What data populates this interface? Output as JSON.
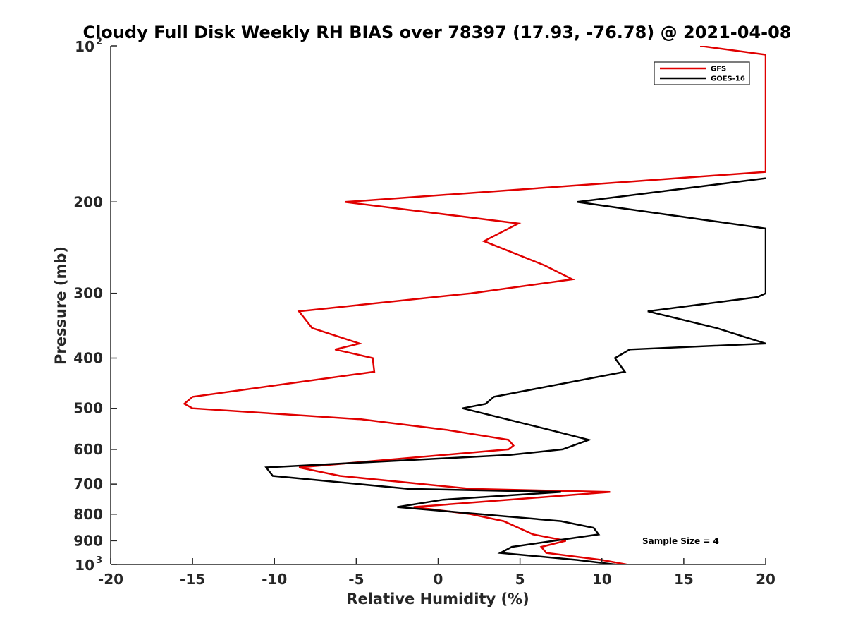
{
  "chart_data": {
    "type": "line",
    "title": "Cloudy Full Disk Weekly RH BIAS over 78397 (17.93, -76.78) @ 2021-04-08",
    "xlabel": "Relative Humidity (%)",
    "ylabel": "Pressure (mb)",
    "xlim": [
      -20,
      20
    ],
    "ylim": [
      100,
      1000
    ],
    "y_scale": "log",
    "y_reversed": true,
    "grid": false,
    "legend_placement": "top-right",
    "x_ticks": [
      {
        "value": -20,
        "label": "-20"
      },
      {
        "value": -15,
        "label": "-15"
      },
      {
        "value": -10,
        "label": "-10"
      },
      {
        "value": -5,
        "label": "-5"
      },
      {
        "value": 0,
        "label": "0"
      },
      {
        "value": 5,
        "label": "5"
      },
      {
        "value": 10,
        "label": "10"
      },
      {
        "value": 15,
        "label": "15"
      },
      {
        "value": 20,
        "label": "20"
      }
    ],
    "y_ticks": [
      {
        "value": 100,
        "label": "10",
        "sup": "2"
      },
      {
        "value": 200,
        "label": "200",
        "sup": ""
      },
      {
        "value": 300,
        "label": "300",
        "sup": ""
      },
      {
        "value": 400,
        "label": "400",
        "sup": ""
      },
      {
        "value": 500,
        "label": "500",
        "sup": ""
      },
      {
        "value": 600,
        "label": "600",
        "sup": ""
      },
      {
        "value": 700,
        "label": "700",
        "sup": ""
      },
      {
        "value": 800,
        "label": "800",
        "sup": ""
      },
      {
        "value": 900,
        "label": "900",
        "sup": ""
      },
      {
        "value": 1000,
        "label": "10",
        "sup": "3"
      }
    ],
    "annotation": "Sample Size = 4",
    "series": [
      {
        "name": "GFS",
        "color": "#e00000",
        "points": [
          {
            "x": 16,
            "y": 100
          },
          {
            "x": 20,
            "y": 104
          },
          {
            "x": 20,
            "y": 175
          },
          {
            "x": -5.7,
            "y": 200
          },
          {
            "x": 4.9,
            "y": 220
          },
          {
            "x": 2.8,
            "y": 238
          },
          {
            "x": 6.5,
            "y": 265
          },
          {
            "x": 8.2,
            "y": 282
          },
          {
            "x": 2.0,
            "y": 300
          },
          {
            "x": -8.5,
            "y": 325
          },
          {
            "x": -7.7,
            "y": 350
          },
          {
            "x": -4.8,
            "y": 375
          },
          {
            "x": -6.3,
            "y": 385
          },
          {
            "x": -4.0,
            "y": 400
          },
          {
            "x": -3.9,
            "y": 425
          },
          {
            "x": -15.0,
            "y": 475
          },
          {
            "x": -15.5,
            "y": 490
          },
          {
            "x": -15.0,
            "y": 500
          },
          {
            "x": -4.7,
            "y": 525
          },
          {
            "x": 0.5,
            "y": 550
          },
          {
            "x": 4.3,
            "y": 575
          },
          {
            "x": 4.6,
            "y": 590
          },
          {
            "x": 4.3,
            "y": 600
          },
          {
            "x": -8.5,
            "y": 650
          },
          {
            "x": -6.0,
            "y": 675
          },
          {
            "x": 2.0,
            "y": 715
          },
          {
            "x": 10.5,
            "y": 725
          },
          {
            "x": -1.5,
            "y": 775
          },
          {
            "x": 2.0,
            "y": 800
          },
          {
            "x": 4.0,
            "y": 825
          },
          {
            "x": 5.8,
            "y": 875
          },
          {
            "x": 7.8,
            "y": 900
          },
          {
            "x": 6.3,
            "y": 925
          },
          {
            "x": 6.6,
            "y": 950
          },
          {
            "x": 10.0,
            "y": 980
          },
          {
            "x": 11.5,
            "y": 1000
          }
        ]
      },
      {
        "name": "GOES-16",
        "color": "#000000",
        "points": [
          {
            "x": 20,
            "y": 180
          },
          {
            "x": 8.5,
            "y": 200
          },
          {
            "x": 20,
            "y": 225
          },
          {
            "x": 20,
            "y": 300
          },
          {
            "x": 19.5,
            "y": 305
          },
          {
            "x": 12.8,
            "y": 325
          },
          {
            "x": 17.0,
            "y": 350
          },
          {
            "x": 20.0,
            "y": 375
          },
          {
            "x": 11.7,
            "y": 385
          },
          {
            "x": 10.8,
            "y": 400
          },
          {
            "x": 11.4,
            "y": 425
          },
          {
            "x": 3.4,
            "y": 475
          },
          {
            "x": 2.9,
            "y": 490
          },
          {
            "x": 1.5,
            "y": 500
          },
          {
            "x": 6.8,
            "y": 550
          },
          {
            "x": 9.2,
            "y": 575
          },
          {
            "x": 7.6,
            "y": 600
          },
          {
            "x": 4.4,
            "y": 615
          },
          {
            "x": -10.5,
            "y": 650
          },
          {
            "x": -10.1,
            "y": 675
          },
          {
            "x": -1.8,
            "y": 715
          },
          {
            "x": 7.5,
            "y": 725
          },
          {
            "x": 0.3,
            "y": 750
          },
          {
            "x": -2.5,
            "y": 775
          },
          {
            "x": 7.5,
            "y": 825
          },
          {
            "x": 9.5,
            "y": 850
          },
          {
            "x": 9.8,
            "y": 875
          },
          {
            "x": 4.5,
            "y": 925
          },
          {
            "x": 3.8,
            "y": 950
          },
          {
            "x": 8.5,
            "y": 980
          },
          {
            "x": 10.8,
            "y": 1000
          }
        ]
      }
    ]
  }
}
